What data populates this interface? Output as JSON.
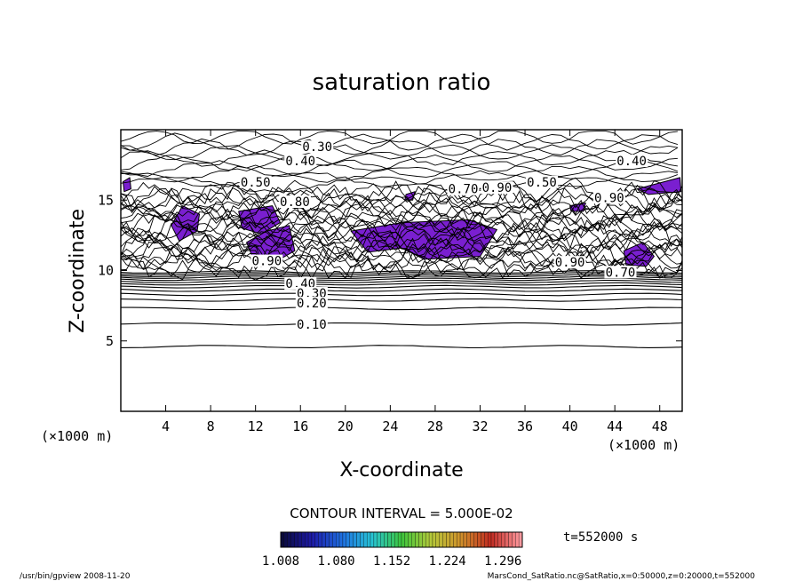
{
  "chart_data": {
    "type": "contour",
    "title": "saturation ratio",
    "xlabel": "X-coordinate",
    "ylabel": "Z-coordinate",
    "x_unit_left": "(×1000 m)",
    "x_unit_right": "(×1000 m)",
    "xlim": [
      0,
      50
    ],
    "ylim": [
      0,
      20
    ],
    "xticks": [
      4,
      8,
      12,
      16,
      20,
      24,
      28,
      32,
      36,
      40,
      44,
      48
    ],
    "yticks": [
      5,
      10,
      15
    ],
    "contour_interval_text": "CONTOUR INTERVAL = 5.000E-02",
    "time_text": "t=552000 s",
    "colorbar": {
      "ticks": [
        "1.008",
        "1.080",
        "1.152",
        "1.224",
        "1.296"
      ],
      "min": 1.008,
      "max": 1.296,
      "colors": [
        "#0a0a3c",
        "#1d1aa8",
        "#1e6ee0",
        "#27c4d6",
        "#3cc63c",
        "#b6c93a",
        "#d0902a",
        "#c02a20",
        "#ff9aa0"
      ]
    },
    "fill_color": "#7a1fd0",
    "contour_labels": [
      {
        "text": "0.30",
        "x": 17.5,
        "z": 18.6
      },
      {
        "text": "0.40",
        "x": 16.0,
        "z": 17.6
      },
      {
        "text": "0.40",
        "x": 45.5,
        "z": 17.6
      },
      {
        "text": "0.50",
        "x": 12.0,
        "z": 16.1
      },
      {
        "text": "0.50",
        "x": 37.5,
        "z": 16.1
      },
      {
        "text": "0.70",
        "x": 30.5,
        "z": 15.6
      },
      {
        "text": "0.80",
        "x": 15.5,
        "z": 14.7
      },
      {
        "text": "0.90",
        "x": 33.5,
        "z": 15.7
      },
      {
        "text": "0.90",
        "x": 40.0,
        "z": 10.4
      },
      {
        "text": "0.90",
        "x": 43.5,
        "z": 15.0
      },
      {
        "text": "0.70",
        "x": 44.5,
        "z": 9.7
      },
      {
        "text": "0.90",
        "x": 13.0,
        "z": 10.5
      },
      {
        "text": "0.40",
        "x": 16.0,
        "z": 8.9
      },
      {
        "text": "0.30",
        "x": 17.0,
        "z": 8.2
      },
      {
        "text": "0.20",
        "x": 17.0,
        "z": 7.5
      },
      {
        "text": "0.10",
        "x": 17.0,
        "z": 6.0
      }
    ]
  },
  "footer": {
    "left": "/usr/bin/gpview  2008-11-20",
    "right": "MarsCond_SatRatio.nc@SatRatio,x=0:50000,z=0:20000,t=552000"
  }
}
